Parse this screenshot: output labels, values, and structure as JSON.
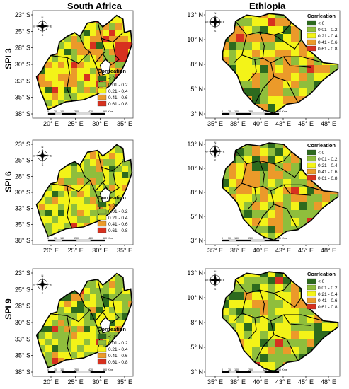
{
  "column_titles": [
    "South Africa",
    "Ethiopia"
  ],
  "row_titles": [
    "SPI 3",
    "SPI 6",
    "SPI 9"
  ],
  "south_africa_axes": {
    "y_ticks": [
      "23° S",
      "25° S",
      "28° S",
      "30° S",
      "33° S",
      "35° S",
      "38° S"
    ],
    "x_ticks": [
      "20° E",
      "25° E",
      "30° E",
      "35° E"
    ]
  },
  "ethiopia_axes": {
    "y_ticks": [
      "13° N",
      "10° N",
      "8° N",
      "5° N",
      "3° N"
    ],
    "x_ticks": [
      "35° E",
      "38° E",
      "40° E",
      "43° E",
      "45° E",
      "48° E"
    ]
  },
  "legend": {
    "title": "Corrleation",
    "classes": [
      {
        "label": "< 0",
        "color": "#2d6a1e"
      },
      {
        "label": "0.01 - 0.2",
        "color": "#8fbe3c"
      },
      {
        "label": "0.21 - 0.4",
        "color": "#f3f318"
      },
      {
        "label": "0.41 - 0.6",
        "color": "#eb9a2a"
      },
      {
        "label": "0.61 - 0.8",
        "color": "#d7311f"
      }
    ]
  },
  "scale_bar_labels": [
    "0",
    "70",
    "140",
    "280",
    "420",
    "560",
    "Kms"
  ],
  "compass_labels": [
    "N",
    "S",
    "E",
    "W"
  ],
  "colors": {
    "boundary": "#000000",
    "background": "#ffffff"
  }
}
